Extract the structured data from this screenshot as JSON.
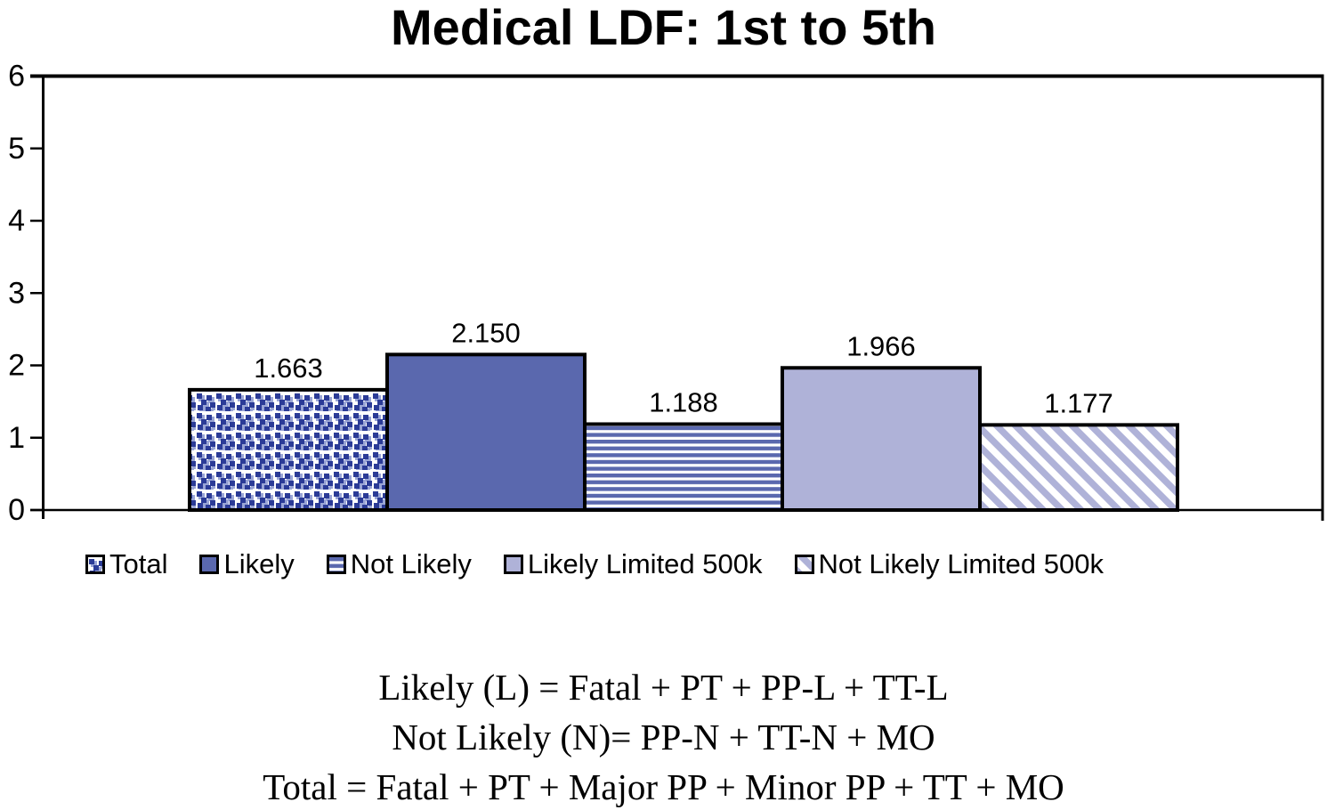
{
  "title": "Medical LDF: 1st to 5th",
  "chart_data": {
    "type": "bar",
    "title": "Medical LDF: 1st to 5th",
    "categories": [
      "Total",
      "Likely",
      "Not Likely",
      "Likely Limited 500k",
      "Not Likely Limited 500k"
    ],
    "values": [
      1.663,
      2.15,
      1.188,
      1.966,
      1.177
    ],
    "value_labels": [
      "1.663",
      "2.150",
      "1.188",
      "1.966",
      "1.177"
    ],
    "xlabel": "",
    "ylabel": "",
    "ylim": [
      0,
      6
    ],
    "yticks": [
      0,
      1,
      2,
      3,
      4,
      5,
      6
    ],
    "grid": false,
    "legend_position": "bottom",
    "series_styles": [
      {
        "category": "Total",
        "pattern": "dots",
        "color_key": "dark_navy"
      },
      {
        "category": "Likely",
        "pattern": "solid",
        "color_key": "medium_blue"
      },
      {
        "category": "Not Likely",
        "pattern": "hstripes",
        "color_key": "medium_blue"
      },
      {
        "category": "Likely Limited 500k",
        "pattern": "solid",
        "color_key": "lavender"
      },
      {
        "category": "Not Likely Limited 500k",
        "pattern": "dstripes",
        "color_key": "lavender"
      }
    ]
  },
  "colors": {
    "dark_navy": "#2B3B97",
    "dot_fringe": "#9AA5D6",
    "medium_blue": "#5A68AE",
    "lavender": "#AFB2D8",
    "bar_border": "#000000",
    "axis": "#000000",
    "background": "#ffffff"
  },
  "legend": {
    "items": [
      {
        "label": "Total"
      },
      {
        "label": "Likely"
      },
      {
        "label": "Not Likely"
      },
      {
        "label": "Likely Limited 500k"
      },
      {
        "label": "Not Likely Limited 500k"
      }
    ]
  },
  "footnotes": [
    "Likely (L) = Fatal + PT + PP-L + TT-L",
    "Not Likely (N)= PP-N + TT-N + MO",
    "Total = Fatal + PT + Major PP + Minor PP + TT + MO"
  ]
}
